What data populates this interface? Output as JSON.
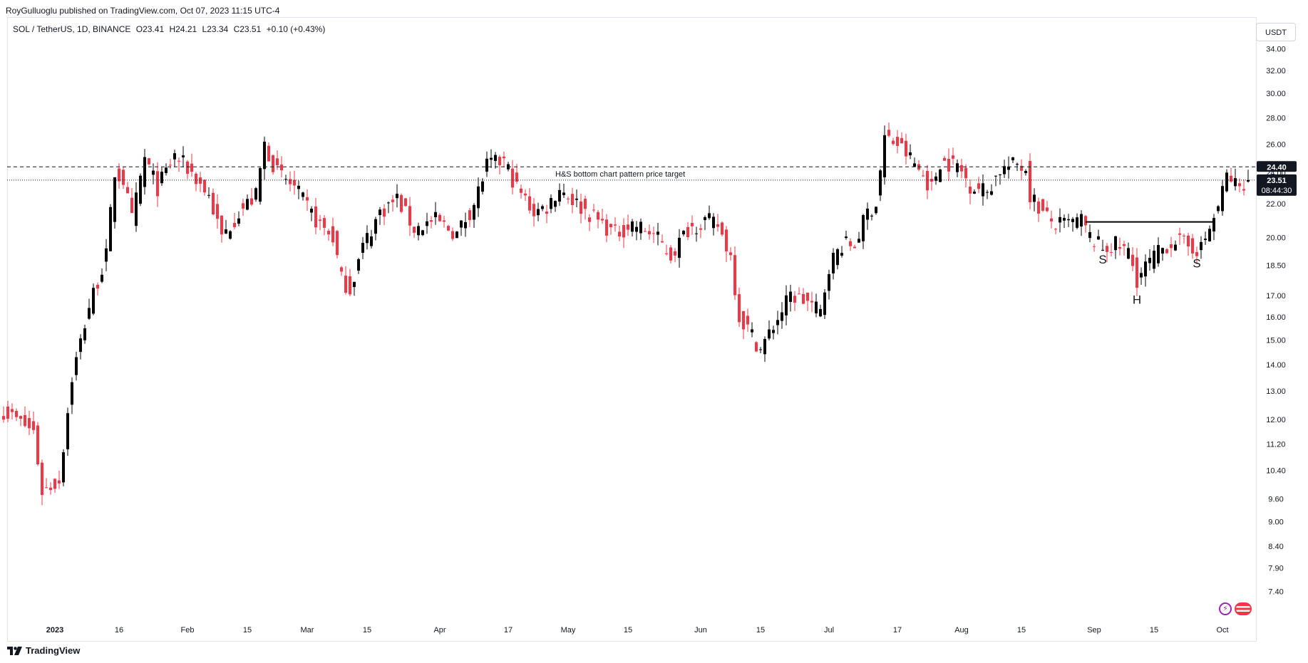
{
  "header": {
    "publisher": "RoyGulluoglu published on TradingView.com, Oct 07, 2023 11:15 UTC-4"
  },
  "legend": {
    "symbol": "SOL / TetherUS, 1D, BINANCE",
    "open": "O23.41",
    "high": "H24.21",
    "low": "L23.34",
    "close": "C23.51",
    "change": "+0.10 (+0.43%)"
  },
  "unit_button": "USDT",
  "footer": {
    "brand": "TradingView"
  },
  "colors": {
    "up": "#000000",
    "down": "#f23645",
    "grid": "#e0e3eb",
    "text": "#131722"
  },
  "chart_data": {
    "type": "candlestick",
    "scale": "log",
    "ylim": [
      6.7,
      36.0
    ],
    "y_ticks": [
      "34.00",
      "32.00",
      "30.00",
      "28.00",
      "26.00",
      "24.00",
      "22.00",
      "20.00",
      "18.50",
      "17.00",
      "16.00",
      "15.00",
      "14.00",
      "13.00",
      "12.00",
      "11.20",
      "10.40",
      "9.60",
      "9.00",
      "8.40",
      "7.90",
      "7.40"
    ],
    "x_ticks": [
      {
        "label": "2023",
        "bold": true,
        "date": "2023-01-01"
      },
      {
        "label": "16",
        "date": "2023-01-16"
      },
      {
        "label": "Feb",
        "date": "2023-02-01"
      },
      {
        "label": "15",
        "date": "2023-02-15"
      },
      {
        "label": "Mar",
        "date": "2023-03-01"
      },
      {
        "label": "15",
        "date": "2023-03-15"
      },
      {
        "label": "Apr",
        "date": "2023-04-01"
      },
      {
        "label": "17",
        "date": "2023-04-17"
      },
      {
        "label": "May",
        "date": "2023-05-01"
      },
      {
        "label": "15",
        "date": "2023-05-15"
      },
      {
        "label": "Jun",
        "date": "2023-06-01"
      },
      {
        "label": "15",
        "date": "2023-06-15"
      },
      {
        "label": "Jul",
        "date": "2023-07-01"
      },
      {
        "label": "17",
        "date": "2023-07-17"
      },
      {
        "label": "Aug",
        "date": "2023-08-01"
      },
      {
        "label": "15",
        "date": "2023-08-15"
      },
      {
        "label": "Sep",
        "date": "2023-09-01"
      },
      {
        "label": "15",
        "date": "2023-09-15"
      },
      {
        "label": "Oct",
        "date": "2023-10-01"
      }
    ],
    "series": [
      {
        "anchors": [
          [
            "2022-12-20",
            12.3
          ],
          [
            "2022-12-27",
            11.6
          ],
          [
            "2022-12-29",
            9.8
          ],
          [
            "2023-01-02",
            10.1
          ],
          [
            "2023-01-05",
            13.5
          ],
          [
            "2023-01-09",
            16.5
          ],
          [
            "2023-01-13",
            19.0
          ],
          [
            "2023-01-15",
            24.0
          ],
          [
            "2023-01-17",
            23.5
          ],
          [
            "2023-01-19",
            21.0
          ],
          [
            "2023-01-22",
            25.0
          ],
          [
            "2023-01-25",
            23.0
          ],
          [
            "2023-01-29",
            25.2
          ],
          [
            "2023-02-02",
            24.0
          ],
          [
            "2023-02-06",
            22.5
          ],
          [
            "2023-02-09",
            20.0
          ],
          [
            "2023-02-13",
            21.5
          ],
          [
            "2023-02-17",
            22.5
          ],
          [
            "2023-02-19",
            26.0
          ],
          [
            "2023-02-22",
            24.0
          ],
          [
            "2023-02-26",
            23.0
          ],
          [
            "2023-03-03",
            21.0
          ],
          [
            "2023-03-07",
            20.0
          ],
          [
            "2023-03-09",
            17.8
          ],
          [
            "2023-03-11",
            17.3
          ],
          [
            "2023-03-14",
            19.5
          ],
          [
            "2023-03-18",
            21.5
          ],
          [
            "2023-03-22",
            22.3
          ],
          [
            "2023-03-26",
            20.5
          ],
          [
            "2023-03-31",
            21.0
          ],
          [
            "2023-04-05",
            20.2
          ],
          [
            "2023-04-09",
            22.0
          ],
          [
            "2023-04-12",
            24.5
          ],
          [
            "2023-04-16",
            24.8
          ],
          [
            "2023-04-19",
            23.0
          ],
          [
            "2023-04-23",
            21.5
          ],
          [
            "2023-04-26",
            21.8
          ],
          [
            "2023-04-29",
            23.0
          ],
          [
            "2023-05-03",
            22.0
          ],
          [
            "2023-05-08",
            21.0
          ],
          [
            "2023-05-12",
            20.2
          ],
          [
            "2023-05-16",
            20.8
          ],
          [
            "2023-05-21",
            20.2
          ],
          [
            "2023-05-25",
            19.0
          ],
          [
            "2023-05-29",
            20.5
          ],
          [
            "2023-06-02",
            21.0
          ],
          [
            "2023-06-05",
            20.7
          ],
          [
            "2023-06-08",
            19.0
          ],
          [
            "2023-06-10",
            16.0
          ],
          [
            "2023-06-12",
            15.5
          ],
          [
            "2023-06-15",
            14.6
          ],
          [
            "2023-06-18",
            15.6
          ],
          [
            "2023-06-22",
            17.0
          ],
          [
            "2023-06-26",
            16.7
          ],
          [
            "2023-06-29",
            16.2
          ],
          [
            "2023-07-01",
            18.5
          ],
          [
            "2023-07-04",
            19.6
          ],
          [
            "2023-07-07",
            19.6
          ],
          [
            "2023-07-10",
            21.5
          ],
          [
            "2023-07-12",
            22.0
          ],
          [
            "2023-07-14",
            26.5
          ],
          [
            "2023-07-17",
            26.0
          ],
          [
            "2023-07-20",
            25.0
          ],
          [
            "2023-07-23",
            23.8
          ],
          [
            "2023-07-25",
            23.0
          ],
          [
            "2023-07-27",
            24.8
          ],
          [
            "2023-07-31",
            24.5
          ],
          [
            "2023-08-03",
            23.2
          ],
          [
            "2023-08-07",
            22.8
          ],
          [
            "2023-08-10",
            24.2
          ],
          [
            "2023-08-14",
            24.6
          ],
          [
            "2023-08-16",
            24.3
          ],
          [
            "2023-08-17",
            22.6
          ],
          [
            "2023-08-20",
            21.4
          ],
          [
            "2023-08-23",
            20.7
          ],
          [
            "2023-08-26",
            20.8
          ],
          [
            "2023-08-29",
            21.0
          ],
          [
            "2023-08-31",
            20.0
          ],
          [
            "2023-09-03",
            19.4
          ],
          [
            "2023-09-06",
            19.6
          ],
          [
            "2023-09-09",
            19.2
          ],
          [
            "2023-09-11",
            17.8
          ],
          [
            "2023-09-14",
            18.7
          ],
          [
            "2023-09-17",
            19.4
          ],
          [
            "2023-09-20",
            19.9
          ],
          [
            "2023-09-23",
            19.5
          ],
          [
            "2023-09-26",
            19.4
          ],
          [
            "2023-09-28",
            20.5
          ],
          [
            "2023-09-30",
            21.8
          ],
          [
            "2023-10-02",
            23.8
          ],
          [
            "2023-10-05",
            23.0
          ],
          [
            "2023-10-06",
            23.41
          ],
          [
            "2023-10-07",
            23.51
          ]
        ]
      }
    ],
    "last_bar": {
      "open": 23.41,
      "high": 24.21,
      "low": 23.34,
      "close": 23.51
    },
    "levels": [
      {
        "value": 24.4,
        "style": "dashed",
        "label": "24.40"
      },
      {
        "value": 23.51,
        "style": "dotted",
        "label": "23.51",
        "countdown": "08:44:30"
      }
    ],
    "annotations": [
      {
        "text": "H&S bottom chart pattern price target",
        "date": "2023-04-28",
        "value": 23.75
      },
      {
        "text": "S",
        "date": "2023-09-03",
        "value": 18.6
      },
      {
        "text": "H",
        "date": "2023-09-11",
        "value": 16.6
      },
      {
        "text": "S",
        "date": "2023-09-25",
        "value": 18.4
      }
    ],
    "neckline": {
      "from": {
        "date": "2023-08-30",
        "value": 20.9
      },
      "to": {
        "date": "2023-09-29",
        "value": 20.9
      }
    },
    "grid": false
  }
}
